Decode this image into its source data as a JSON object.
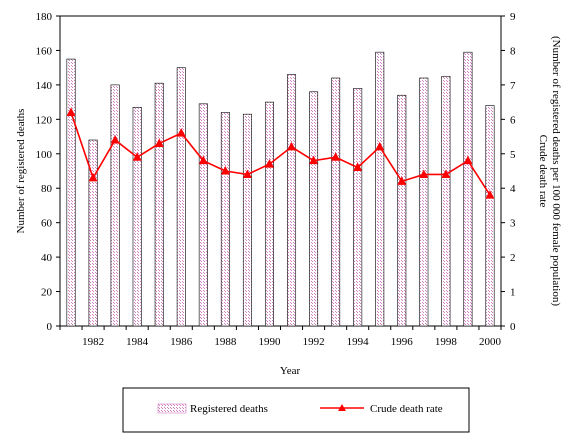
{
  "chart_data": {
    "type": "bar",
    "x": [
      1981,
      1982,
      1983,
      1984,
      1985,
      1986,
      1987,
      1988,
      1989,
      1990,
      1991,
      1992,
      1993,
      1994,
      1995,
      1996,
      1997,
      1998,
      1999,
      2000
    ],
    "x_tick_labels": [
      "1982",
      "1984",
      "1986",
      "1988",
      "1990",
      "1992",
      "1994",
      "1996",
      "1998",
      "2000"
    ],
    "xlabel": "Year",
    "ylabel_left": "Number of registered deaths",
    "ylabel_right_line1": "Crude death rate",
    "ylabel_right_line2": "(Number of registered  deaths per 100 000 female population)",
    "ylim_left": [
      0,
      180
    ],
    "yticks_left": [
      0,
      20,
      40,
      60,
      80,
      100,
      120,
      140,
      160,
      180
    ],
    "ylim_right": [
      0,
      9
    ],
    "yticks_right": [
      0,
      1,
      2,
      3,
      4,
      5,
      6,
      7,
      8,
      9
    ],
    "series": [
      {
        "name": "Registered deaths",
        "type": "bar",
        "axis": "left",
        "color": "#f2c8e6",
        "values": [
          155,
          108,
          140,
          127,
          141,
          150,
          129,
          124,
          123,
          130,
          146,
          136,
          144,
          138,
          159,
          134,
          144,
          145,
          159,
          128
        ]
      },
      {
        "name": "Crude death rate",
        "type": "line",
        "axis": "right",
        "color": "#ff0000",
        "marker": "triangle",
        "values": [
          6.2,
          4.3,
          5.4,
          4.9,
          5.3,
          5.6,
          4.8,
          4.5,
          4.4,
          4.7,
          5.2,
          4.8,
          4.9,
          4.6,
          5.2,
          4.2,
          4.4,
          4.4,
          4.8,
          3.8
        ]
      }
    ],
    "grid": false,
    "legend": "bottom"
  }
}
